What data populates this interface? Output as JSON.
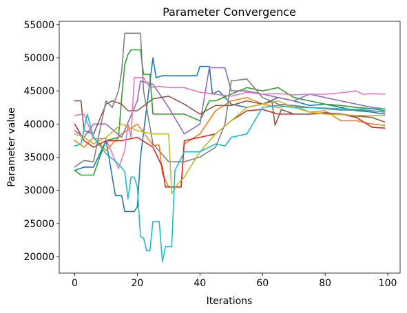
{
  "chart_data": {
    "type": "line",
    "title": "Parameter Convergence",
    "xlabel": "Iterations",
    "ylabel": "Parameter value",
    "xlim": [
      -4.95,
      103.95
    ],
    "ylim": [
      17500,
      55500
    ],
    "xticks": [
      0,
      20,
      40,
      60,
      80,
      100
    ],
    "yticks": [
      20000,
      25000,
      30000,
      35000,
      40000,
      45000,
      50000,
      55000
    ],
    "grid": false,
    "legend": "none",
    "series": [
      {
        "color": "#1f77b4",
        "points": [
          [
            0,
            33000
          ],
          [
            3,
            33500
          ],
          [
            6,
            33500
          ],
          [
            10,
            37500
          ],
          [
            13,
            29200
          ],
          [
            15,
            29200
          ],
          [
            16,
            26800
          ],
          [
            19,
            26800
          ],
          [
            20,
            27500
          ],
          [
            21,
            35000
          ],
          [
            25,
            50000
          ],
          [
            26,
            47000
          ],
          [
            28,
            47300
          ],
          [
            39,
            47300
          ],
          [
            40,
            48700
          ],
          [
            43,
            48700
          ],
          [
            44,
            44500
          ],
          [
            46,
            45000
          ],
          [
            50,
            43000
          ],
          [
            55,
            42500
          ],
          [
            60,
            43000
          ],
          [
            65,
            44000
          ],
          [
            70,
            43500
          ],
          [
            75,
            42800
          ],
          [
            80,
            43000
          ],
          [
            85,
            42500
          ],
          [
            90,
            42000
          ],
          [
            95,
            41800
          ],
          [
            99,
            41500
          ]
        ]
      },
      {
        "color": "#ff7f0e",
        "points": [
          [
            0,
            37500
          ],
          [
            3,
            36500
          ],
          [
            6,
            38000
          ],
          [
            10,
            36000
          ],
          [
            15,
            38500
          ],
          [
            20,
            40000
          ],
          [
            25,
            36800
          ],
          [
            27,
            36800
          ],
          [
            28,
            32500
          ],
          [
            30,
            30500
          ],
          [
            34,
            30500
          ],
          [
            35,
            37000
          ],
          [
            40,
            38500
          ],
          [
            45,
            42000
          ],
          [
            50,
            43500
          ],
          [
            55,
            44000
          ],
          [
            60,
            43000
          ],
          [
            65,
            42500
          ],
          [
            70,
            42800
          ],
          [
            75,
            41800
          ],
          [
            80,
            42000
          ],
          [
            85,
            40500
          ],
          [
            90,
            40500
          ],
          [
            95,
            40000
          ],
          [
            99,
            39800
          ]
        ]
      },
      {
        "color": "#2ca02c",
        "points": [
          [
            0,
            33000
          ],
          [
            2,
            32300
          ],
          [
            6,
            32300
          ],
          [
            8,
            35000
          ],
          [
            10,
            37500
          ],
          [
            14,
            38000
          ],
          [
            15,
            44000
          ],
          [
            16,
            49000
          ],
          [
            17,
            50500
          ],
          [
            18,
            51200
          ],
          [
            21,
            51200
          ],
          [
            22,
            47500
          ],
          [
            24,
            47500
          ],
          [
            25,
            41500
          ],
          [
            30,
            41500
          ],
          [
            33,
            41500
          ],
          [
            35,
            41500
          ],
          [
            40,
            40500
          ],
          [
            43,
            43500
          ],
          [
            45,
            43500
          ],
          [
            50,
            44500
          ],
          [
            55,
            45500
          ],
          [
            60,
            45000
          ],
          [
            65,
            45500
          ],
          [
            70,
            44000
          ],
          [
            75,
            43500
          ],
          [
            80,
            43000
          ],
          [
            85,
            42800
          ],
          [
            90,
            42500
          ],
          [
            95,
            42300
          ],
          [
            99,
            42000
          ]
        ]
      },
      {
        "color": "#d62728",
        "points": [
          [
            0,
            40000
          ],
          [
            3,
            37500
          ],
          [
            6,
            36500
          ],
          [
            10,
            37500
          ],
          [
            15,
            37500
          ],
          [
            20,
            38000
          ],
          [
            25,
            36500
          ],
          [
            28,
            33500
          ],
          [
            29,
            30500
          ],
          [
            34,
            30500
          ],
          [
            35,
            37500
          ],
          [
            40,
            38000
          ],
          [
            45,
            38500
          ],
          [
            50,
            40500
          ],
          [
            55,
            42000
          ],
          [
            60,
            42200
          ],
          [
            65,
            41500
          ],
          [
            70,
            41500
          ],
          [
            75,
            41500
          ],
          [
            80,
            41700
          ],
          [
            85,
            41500
          ],
          [
            90,
            41000
          ],
          [
            95,
            39500
          ],
          [
            99,
            39400
          ]
        ]
      },
      {
        "color": "#9467bd",
        "points": [
          [
            0,
            39000
          ],
          [
            3,
            38000
          ],
          [
            6,
            40000
          ],
          [
            10,
            40000
          ],
          [
            15,
            38000
          ],
          [
            20,
            43500
          ],
          [
            21,
            46500
          ],
          [
            25,
            46000
          ],
          [
            30,
            42500
          ],
          [
            35,
            38500
          ],
          [
            40,
            40000
          ],
          [
            43,
            48500
          ],
          [
            48,
            48500
          ],
          [
            50,
            45000
          ],
          [
            55,
            45000
          ],
          [
            60,
            44500
          ],
          [
            65,
            44000
          ],
          [
            70,
            43500
          ],
          [
            75,
            44500
          ],
          [
            80,
            44000
          ],
          [
            85,
            43500
          ],
          [
            90,
            43000
          ],
          [
            95,
            42500
          ],
          [
            99,
            42300
          ]
        ]
      },
      {
        "color": "#8c564b",
        "points": [
          [
            0,
            43500
          ],
          [
            2,
            43500
          ],
          [
            3,
            39000
          ],
          [
            6,
            38500
          ],
          [
            10,
            43000
          ],
          [
            12,
            43500
          ],
          [
            15,
            43000
          ],
          [
            17,
            42000
          ],
          [
            20,
            42000
          ],
          [
            25,
            43800
          ],
          [
            30,
            44200
          ],
          [
            35,
            43000
          ],
          [
            40,
            41500
          ],
          [
            45,
            42800
          ],
          [
            50,
            42800
          ],
          [
            55,
            43500
          ],
          [
            60,
            43000
          ],
          [
            63,
            43500
          ],
          [
            64,
            39800
          ],
          [
            66,
            42200
          ],
          [
            70,
            41500
          ],
          [
            75,
            41500
          ],
          [
            80,
            41600
          ],
          [
            85,
            41500
          ],
          [
            90,
            41200
          ],
          [
            95,
            41000
          ],
          [
            99,
            40300
          ]
        ]
      },
      {
        "color": "#e377c2",
        "points": [
          [
            0,
            41300
          ],
          [
            3,
            41500
          ],
          [
            6,
            37800
          ],
          [
            10,
            37800
          ],
          [
            12,
            35500
          ],
          [
            14,
            33300
          ],
          [
            16,
            36000
          ],
          [
            17,
            40000
          ],
          [
            18,
            38000
          ],
          [
            19,
            47000
          ],
          [
            22,
            47000
          ],
          [
            24,
            45500
          ],
          [
            27,
            45700
          ],
          [
            30,
            45500
          ],
          [
            35,
            45500
          ],
          [
            40,
            44800
          ],
          [
            45,
            44500
          ],
          [
            50,
            44200
          ],
          [
            55,
            44800
          ],
          [
            60,
            44500
          ],
          [
            65,
            44600
          ],
          [
            70,
            44400
          ],
          [
            75,
            44500
          ],
          [
            80,
            44500
          ],
          [
            85,
            44700
          ],
          [
            90,
            45000
          ],
          [
            92,
            44500
          ],
          [
            95,
            44600
          ],
          [
            99,
            44500
          ]
        ]
      },
      {
        "color": "#7f7f7f",
        "points": [
          [
            0,
            33500
          ],
          [
            3,
            34500
          ],
          [
            6,
            34300
          ],
          [
            8,
            39000
          ],
          [
            10,
            43500
          ],
          [
            12,
            42500
          ],
          [
            14,
            45000
          ],
          [
            15,
            48000
          ],
          [
            16,
            53700
          ],
          [
            21,
            53700
          ],
          [
            22,
            45000
          ],
          [
            25,
            37000
          ],
          [
            30,
            34300
          ],
          [
            35,
            34300
          ],
          [
            40,
            35000
          ],
          [
            45,
            36500
          ],
          [
            48,
            40000
          ],
          [
            50,
            46500
          ],
          [
            55,
            46800
          ],
          [
            60,
            44000
          ],
          [
            65,
            43000
          ],
          [
            70,
            42800
          ],
          [
            75,
            42500
          ],
          [
            80,
            42300
          ],
          [
            85,
            42100
          ],
          [
            90,
            42100
          ],
          [
            95,
            42000
          ],
          [
            99,
            41800
          ]
        ]
      },
      {
        "color": "#bcbd22",
        "points": [
          [
            0,
            38500
          ],
          [
            3,
            38000
          ],
          [
            6,
            37000
          ],
          [
            10,
            38000
          ],
          [
            15,
            40000
          ],
          [
            20,
            39000
          ],
          [
            25,
            38500
          ],
          [
            30,
            38500
          ],
          [
            31,
            29500
          ],
          [
            33,
            31000
          ],
          [
            35,
            32000
          ],
          [
            40,
            35800
          ],
          [
            45,
            38500
          ],
          [
            50,
            40500
          ],
          [
            55,
            42500
          ],
          [
            60,
            43000
          ],
          [
            65,
            43500
          ],
          [
            70,
            42500
          ],
          [
            75,
            41800
          ],
          [
            80,
            41500
          ],
          [
            85,
            41400
          ],
          [
            90,
            41300
          ],
          [
            95,
            41300
          ],
          [
            99,
            41300
          ]
        ]
      },
      {
        "color": "#17becf",
        "points": [
          [
            0,
            36700
          ],
          [
            2,
            37000
          ],
          [
            4,
            41500
          ],
          [
            6,
            38000
          ],
          [
            10,
            35500
          ],
          [
            14,
            34000
          ],
          [
            16,
            32800
          ],
          [
            17,
            28700
          ],
          [
            18,
            32000
          ],
          [
            19,
            32000
          ],
          [
            20,
            30500
          ],
          [
            21,
            23000
          ],
          [
            22,
            22800
          ],
          [
            23,
            20900
          ],
          [
            24,
            20900
          ],
          [
            25,
            25300
          ],
          [
            27,
            25300
          ],
          [
            28,
            19200
          ],
          [
            29,
            21500
          ],
          [
            31,
            21500
          ],
          [
            32,
            33000
          ],
          [
            35,
            35800
          ],
          [
            40,
            35800
          ],
          [
            45,
            37000
          ],
          [
            48,
            36700
          ],
          [
            50,
            38000
          ],
          [
            55,
            38500
          ],
          [
            60,
            42500
          ],
          [
            65,
            42800
          ],
          [
            70,
            42500
          ],
          [
            75,
            42500
          ],
          [
            80,
            42400
          ],
          [
            85,
            42300
          ],
          [
            90,
            42200
          ],
          [
            95,
            42300
          ],
          [
            99,
            42300
          ]
        ]
      }
    ]
  }
}
